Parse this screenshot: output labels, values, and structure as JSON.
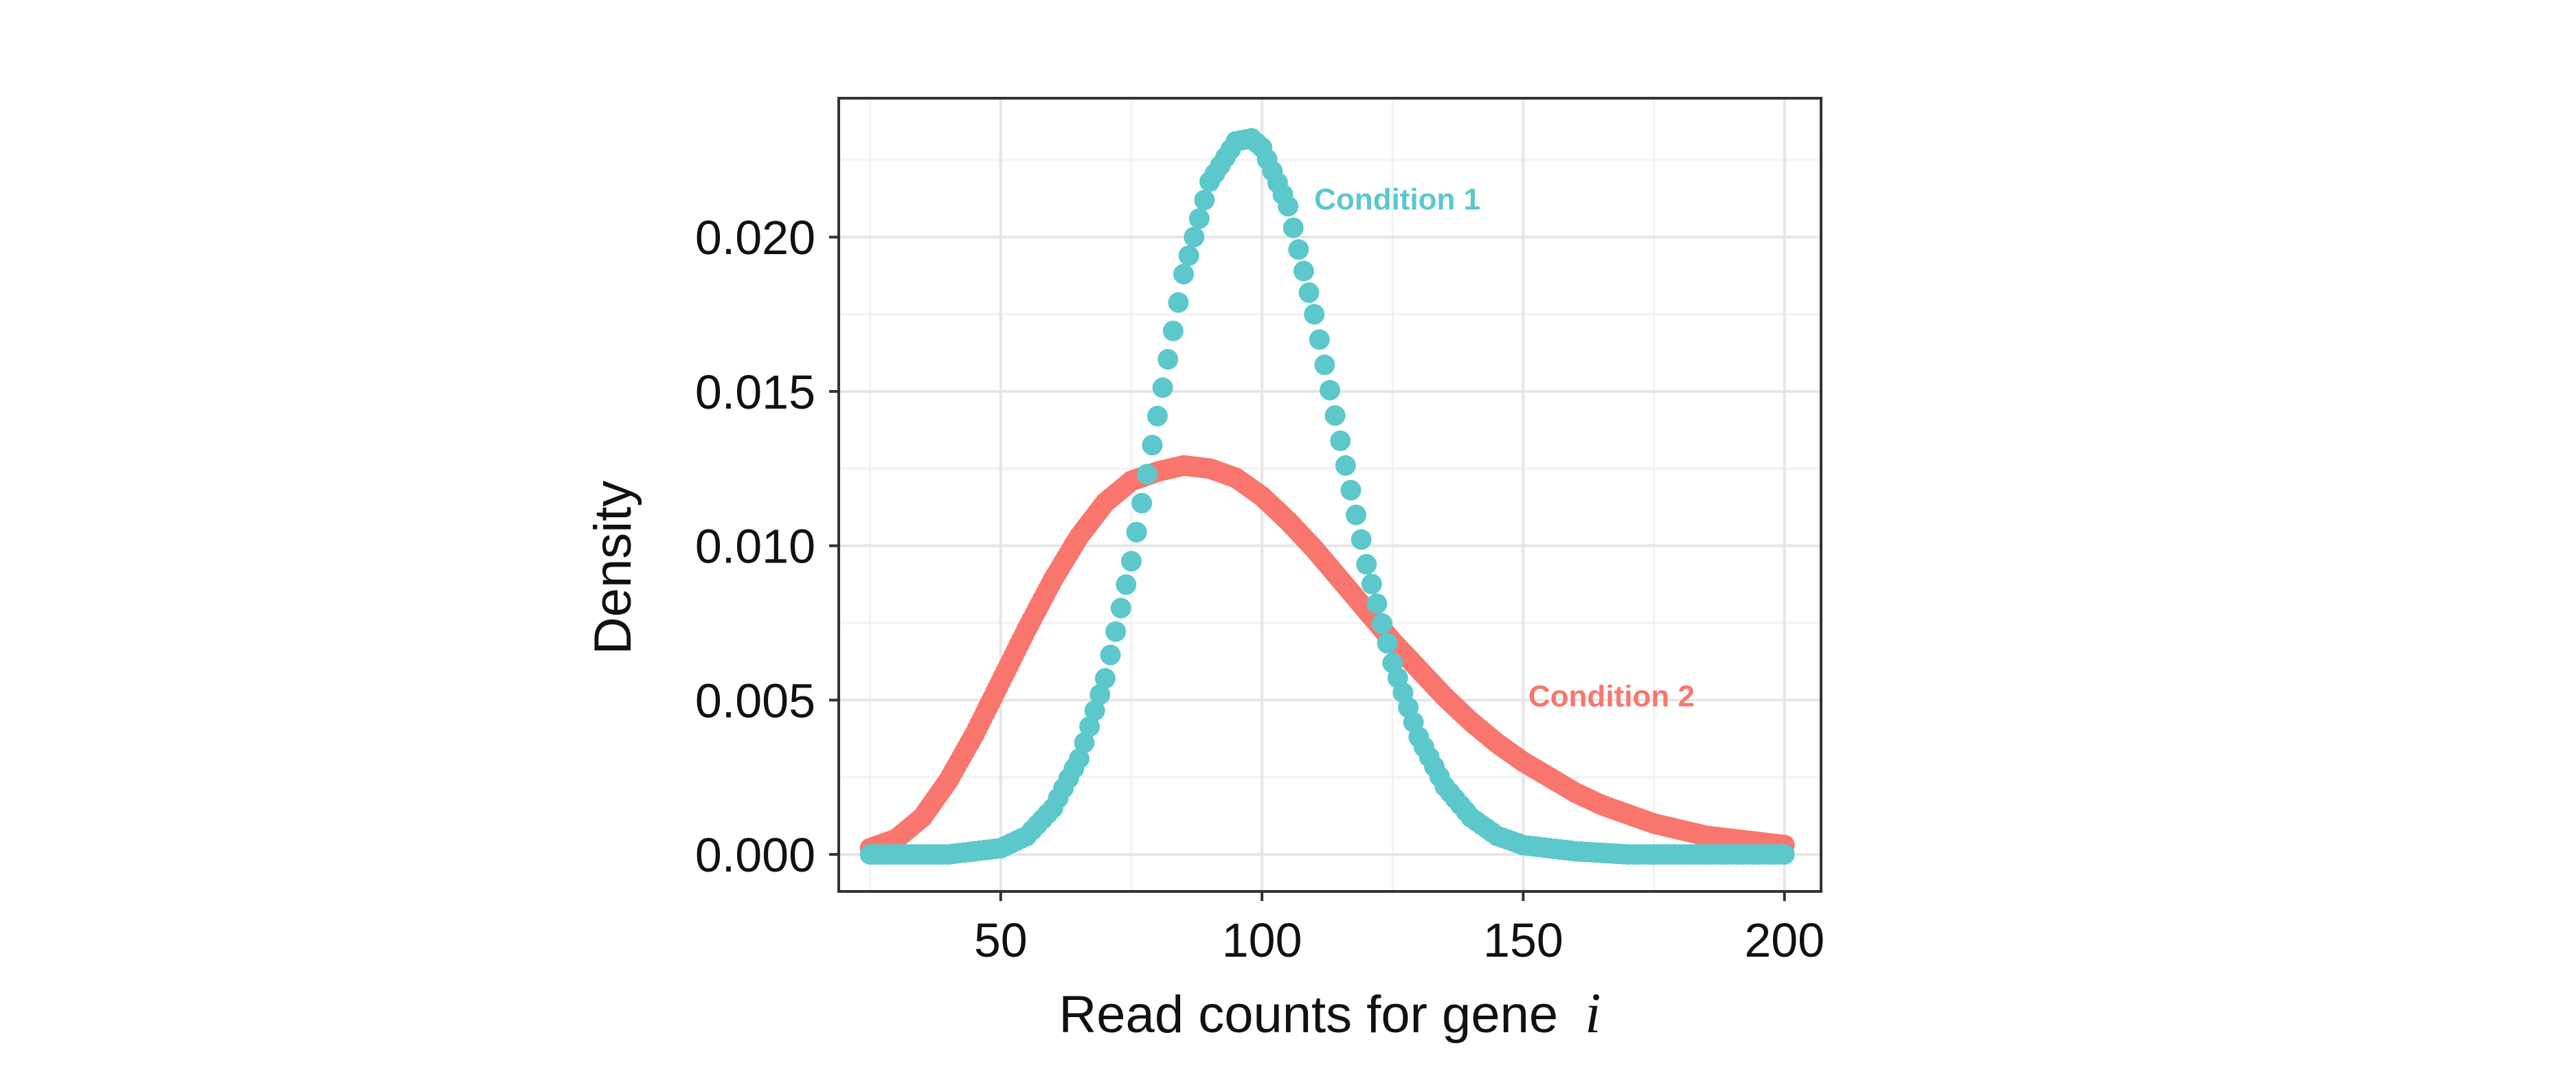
{
  "chart_data": {
    "type": "scatter",
    "title": "",
    "xlabel": "Read counts for gene",
    "xlabel_italic_var": "i",
    "ylabel": "Density",
    "xlim": [
      19,
      207
    ],
    "ylim": [
      -0.0012,
      0.0245
    ],
    "xticks": [
      50,
      100,
      150,
      200
    ],
    "xtick_labels": [
      "50",
      "100",
      "150",
      "200"
    ],
    "yticks": [
      0.0,
      0.005,
      0.01,
      0.015,
      0.02
    ],
    "ytick_labels": [
      "0.000",
      "0.005",
      "0.010",
      "0.015",
      "0.020"
    ],
    "grid": true,
    "legend": "none",
    "annotations": [
      {
        "text": "Condition 1",
        "x": 110,
        "y": 0.0209,
        "color": "#5cc8cc"
      },
      {
        "text": "Condition 2",
        "x": 151,
        "y": 0.0048,
        "color": "#f8766d"
      }
    ],
    "series": [
      {
        "name": "Condition 1",
        "color": "#5cc8cc",
        "x_range": [
          25,
          200,
          1
        ],
        "points": [
          [
            25,
            0.0
          ],
          [
            30,
            0.0
          ],
          [
            35,
            0.0
          ],
          [
            40,
            0.0
          ],
          [
            45,
            0.0001
          ],
          [
            50,
            0.0002
          ],
          [
            55,
            0.0006
          ],
          [
            60,
            0.0015
          ],
          [
            65,
            0.0031
          ],
          [
            70,
            0.0057
          ],
          [
            75,
            0.0095
          ],
          [
            80,
            0.0142
          ],
          [
            85,
            0.0188
          ],
          [
            90,
            0.0218
          ],
          [
            95,
            0.0231
          ],
          [
            98,
            0.0232
          ],
          [
            100,
            0.0229
          ],
          [
            105,
            0.021
          ],
          [
            110,
            0.0175
          ],
          [
            115,
            0.0134
          ],
          [
            120,
            0.0094
          ],
          [
            125,
            0.0062
          ],
          [
            130,
            0.0038
          ],
          [
            135,
            0.0022
          ],
          [
            140,
            0.0012
          ],
          [
            145,
            0.0006
          ],
          [
            150,
            0.0003
          ],
          [
            160,
            0.0001
          ],
          [
            170,
            0.0
          ],
          [
            180,
            0.0
          ],
          [
            190,
            0.0
          ],
          [
            200,
            0.0
          ]
        ]
      },
      {
        "name": "Condition 2",
        "color": "#f8766d",
        "x_range": [
          25,
          200,
          0.5
        ],
        "points": [
          [
            25,
            0.0002
          ],
          [
            30,
            0.0005
          ],
          [
            35,
            0.0012
          ],
          [
            40,
            0.0024
          ],
          [
            45,
            0.0039
          ],
          [
            50,
            0.0056
          ],
          [
            55,
            0.0073
          ],
          [
            60,
            0.0089
          ],
          [
            65,
            0.0103
          ],
          [
            70,
            0.0114
          ],
          [
            75,
            0.0121
          ],
          [
            80,
            0.0124
          ],
          [
            85,
            0.0126
          ],
          [
            90,
            0.0125
          ],
          [
            95,
            0.0122
          ],
          [
            100,
            0.0116
          ],
          [
            105,
            0.0108
          ],
          [
            110,
            0.0099
          ],
          [
            115,
            0.0089
          ],
          [
            120,
            0.0079
          ],
          [
            125,
            0.0069
          ],
          [
            130,
            0.006
          ],
          [
            135,
            0.0051
          ],
          [
            140,
            0.0043
          ],
          [
            145,
            0.0036
          ],
          [
            150,
            0.003
          ],
          [
            155,
            0.0025
          ],
          [
            160,
            0.002
          ],
          [
            165,
            0.0016
          ],
          [
            170,
            0.0013
          ],
          [
            175,
            0.001
          ],
          [
            180,
            0.0008
          ],
          [
            185,
            0.0006
          ],
          [
            190,
            0.0005
          ],
          [
            195,
            0.0004
          ],
          [
            200,
            0.0003
          ]
        ]
      }
    ]
  }
}
